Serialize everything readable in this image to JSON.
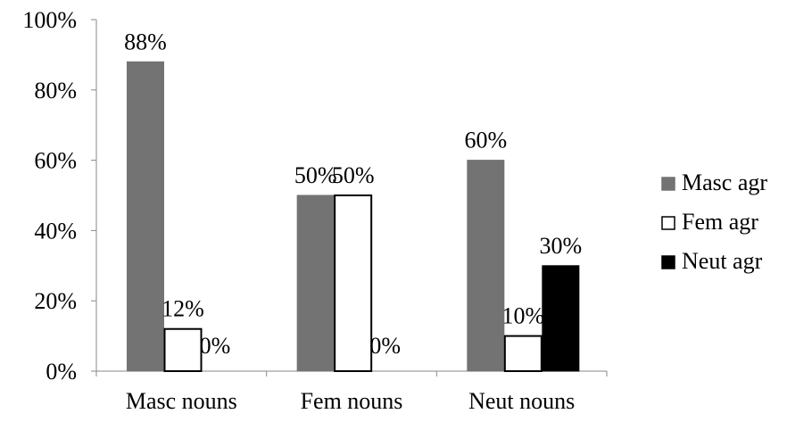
{
  "chart_data": {
    "type": "bar",
    "categories": [
      "Masc nouns",
      "Fem nouns",
      "Neut nouns"
    ],
    "series": [
      {
        "name": "Masc agr",
        "values": [
          88,
          50,
          60
        ],
        "labels": [
          "88%",
          "50%",
          "60%"
        ],
        "fill": "#737373",
        "stroke": "#737373"
      },
      {
        "name": "Fem agr",
        "values": [
          12,
          50,
          10
        ],
        "labels": [
          "12%",
          "50%",
          "10%"
        ],
        "fill": "#ffffff",
        "stroke": "#000000"
      },
      {
        "name": "Neut agr",
        "values": [
          0,
          0,
          30
        ],
        "labels": [
          "0%",
          "0%",
          "30%"
        ],
        "fill": "#000000",
        "stroke": "#000000"
      }
    ],
    "ylim": [
      0,
      100
    ],
    "yticks": [
      0,
      20,
      40,
      60,
      80,
      100
    ],
    "ytick_labels": [
      "0%",
      "20%",
      "40%",
      "60%",
      "80%",
      "100%"
    ],
    "grid": false,
    "legend_position": "right"
  }
}
